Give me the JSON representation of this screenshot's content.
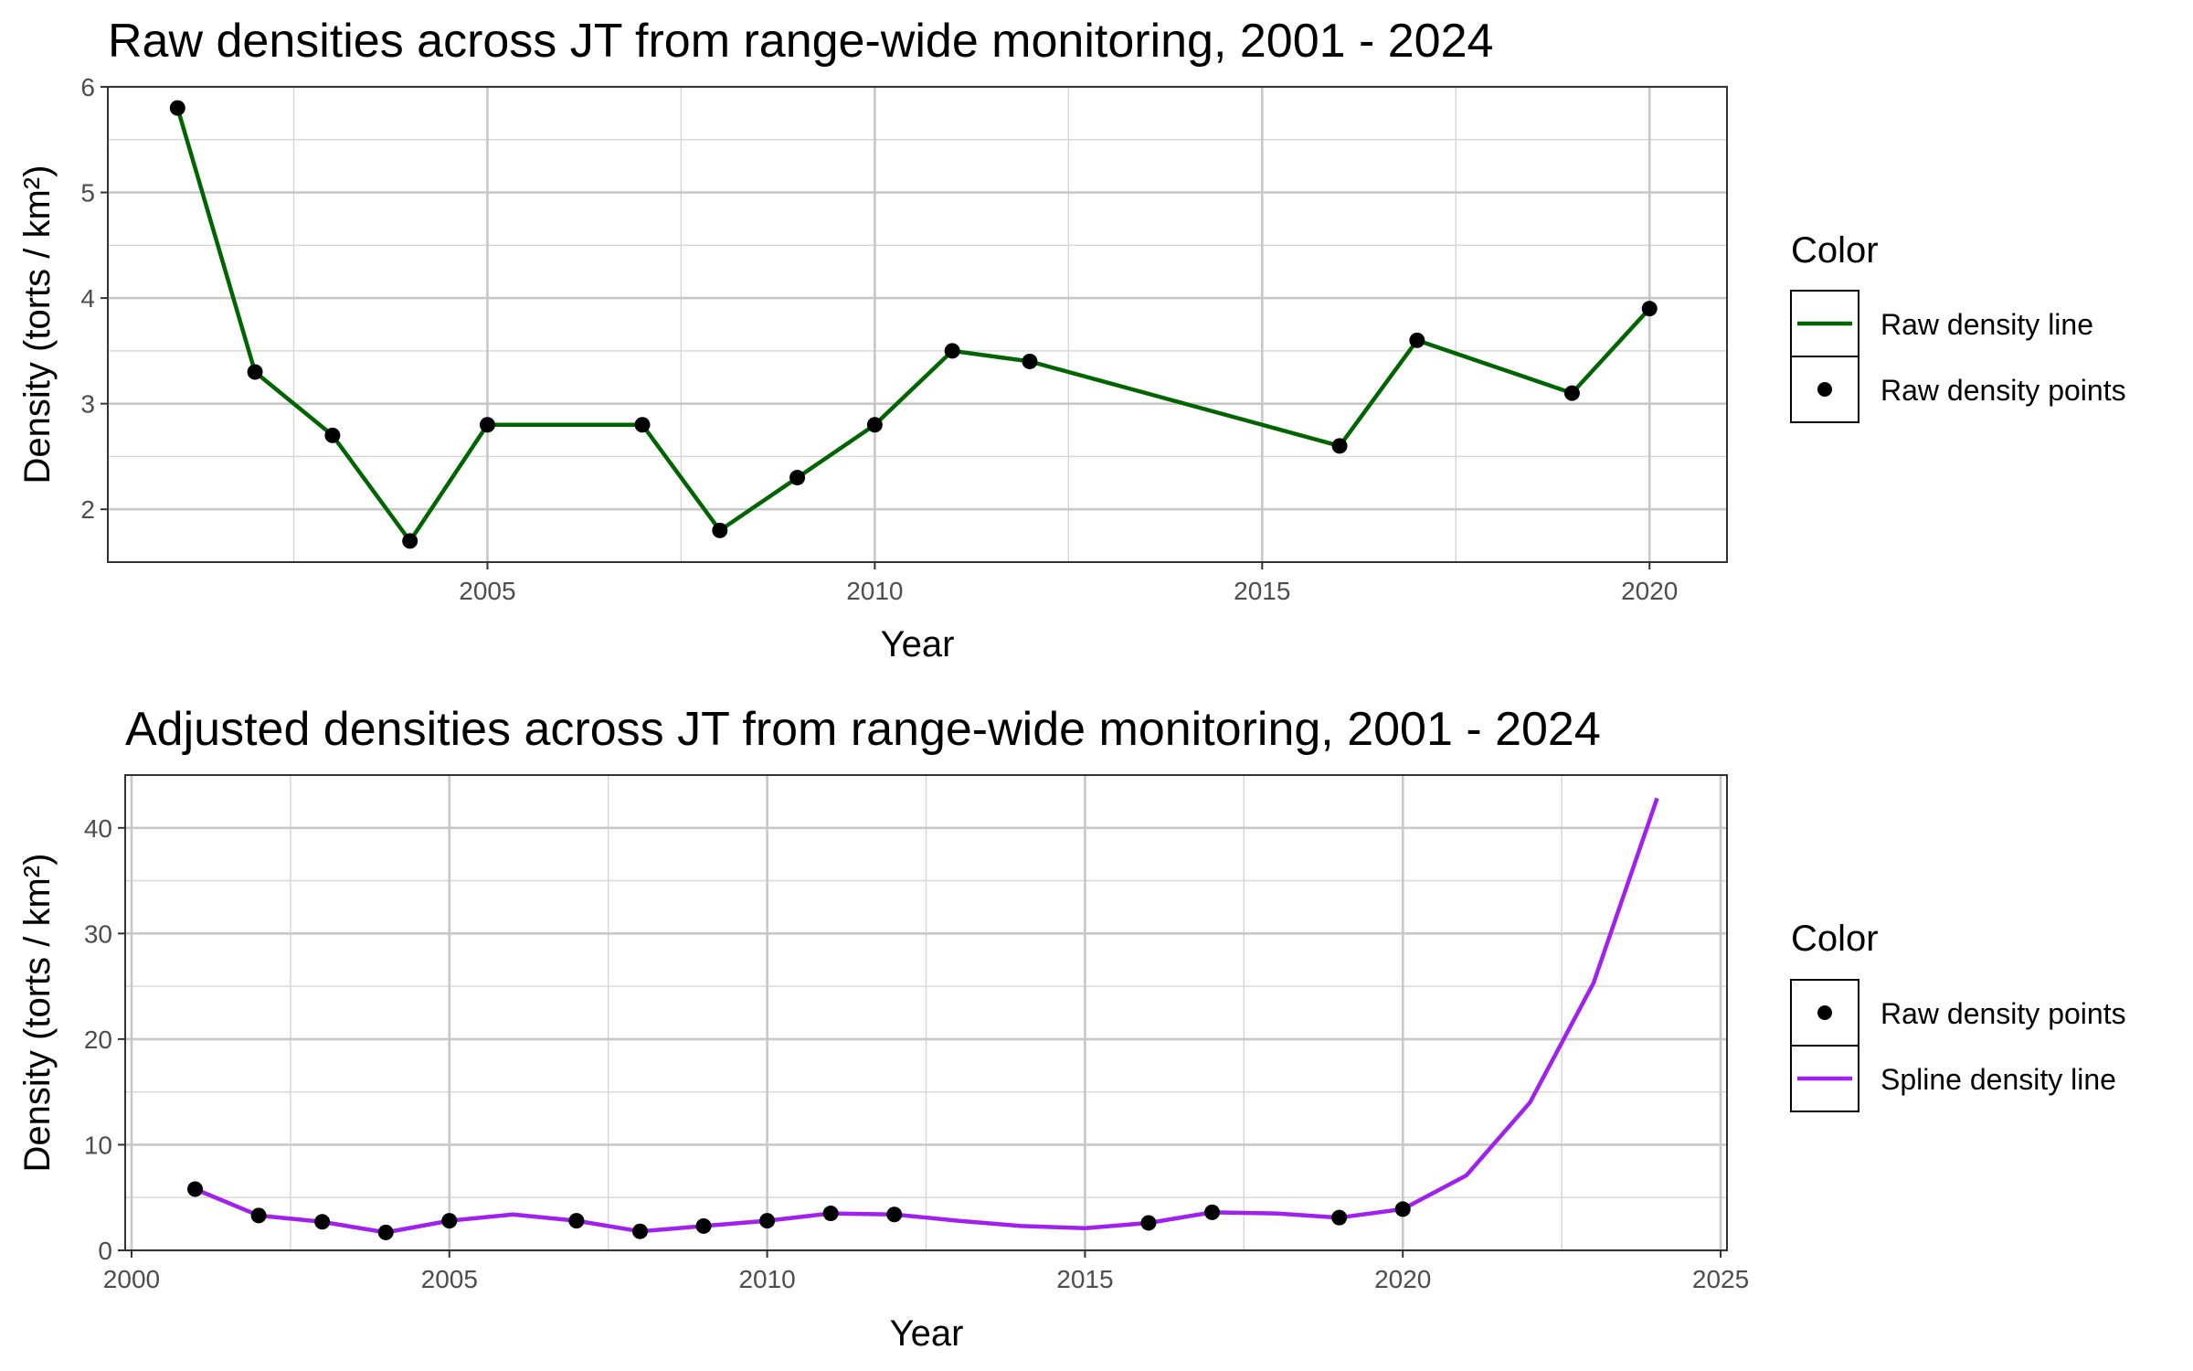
{
  "chart_data": [
    {
      "type": "line",
      "title": "Raw densities across JT from range-wide monitoring, 2001 - 2024",
      "xlabel": "Year",
      "ylabel": "Density (torts / km²)",
      "xlim": [
        2000.1,
        2021.0
      ],
      "ylim": [
        1.5,
        6.0
      ],
      "x_ticks": [
        2005,
        2010,
        2015,
        2020
      ],
      "x_tick_labels": [
        "2005",
        "2010",
        "2015",
        "2020"
      ],
      "y_ticks": [
        2,
        3,
        4,
        5,
        6
      ],
      "y_tick_labels": [
        "2",
        "3",
        "4",
        "5",
        "6"
      ],
      "grid": true,
      "legend": {
        "title": "Color",
        "position": "right",
        "entries": [
          {
            "label": "Raw density line",
            "kind": "line",
            "color": "#006400"
          },
          {
            "label": "Raw density points",
            "kind": "point",
            "color": "#000000"
          }
        ]
      },
      "series": [
        {
          "name": "Raw density line",
          "kind": "line",
          "color": "#006400",
          "x": [
            2001,
            2002,
            2003,
            2004,
            2005,
            2007,
            2008,
            2009,
            2010,
            2011,
            2012,
            2016,
            2017,
            2019,
            2020
          ],
          "y": [
            5.8,
            3.3,
            2.7,
            1.7,
            2.8,
            2.8,
            1.8,
            2.3,
            2.8,
            3.5,
            3.4,
            2.6,
            3.6,
            3.1,
            3.9
          ]
        },
        {
          "name": "Raw density points",
          "kind": "point",
          "color": "#000000",
          "x": [
            2001,
            2002,
            2003,
            2004,
            2005,
            2007,
            2008,
            2009,
            2010,
            2011,
            2012,
            2016,
            2017,
            2019,
            2020
          ],
          "y": [
            5.8,
            3.3,
            2.7,
            1.7,
            2.8,
            2.8,
            1.8,
            2.3,
            2.8,
            3.5,
            3.4,
            2.6,
            3.6,
            3.1,
            3.9
          ]
        }
      ]
    },
    {
      "type": "line",
      "title": "Adjusted densities across JT from range-wide monitoring, 2001 - 2024",
      "xlabel": "Year",
      "ylabel": "Density (torts / km²)",
      "xlim": [
        1999.9,
        2025.1
      ],
      "ylim": [
        0,
        45
      ],
      "x_ticks": [
        2000,
        2005,
        2010,
        2015,
        2020,
        2025
      ],
      "x_tick_labels": [
        "2000",
        "2005",
        "2010",
        "2015",
        "2020",
        "2025"
      ],
      "y_ticks": [
        0,
        10,
        20,
        30,
        40
      ],
      "y_tick_labels": [
        "0",
        "10",
        "20",
        "30",
        "40"
      ],
      "grid": true,
      "legend": {
        "title": "Color",
        "position": "right",
        "entries": [
          {
            "label": "Raw density points",
            "kind": "point",
            "color": "#000000"
          },
          {
            "label": "Spline density line",
            "kind": "line",
            "color": "#a020f0"
          }
        ]
      },
      "series": [
        {
          "name": "Raw density points",
          "kind": "point",
          "color": "#000000",
          "x": [
            2001,
            2002,
            2003,
            2004,
            2005,
            2007,
            2008,
            2009,
            2010,
            2011,
            2012,
            2016,
            2017,
            2019,
            2020
          ],
          "y": [
            5.8,
            3.3,
            2.7,
            1.7,
            2.8,
            2.8,
            1.8,
            2.3,
            2.8,
            3.5,
            3.4,
            2.6,
            3.6,
            3.1,
            3.9
          ]
        },
        {
          "name": "Spline density line",
          "kind": "line",
          "color": "#a020f0",
          "x": [
            2001,
            2002,
            2003,
            2004,
            2005,
            2006,
            2007,
            2008,
            2009,
            2010,
            2011,
            2012,
            2013,
            2014,
            2015,
            2016,
            2017,
            2018,
            2019,
            2020,
            2021,
            2022,
            2023,
            2024
          ],
          "y": [
            5.8,
            3.3,
            2.7,
            1.7,
            2.8,
            3.4,
            2.8,
            1.8,
            2.3,
            2.8,
            3.5,
            3.4,
            2.8,
            2.3,
            2.1,
            2.6,
            3.6,
            3.5,
            3.1,
            3.9,
            7.1,
            14.0,
            25.3,
            42.8
          ]
        }
      ]
    }
  ]
}
